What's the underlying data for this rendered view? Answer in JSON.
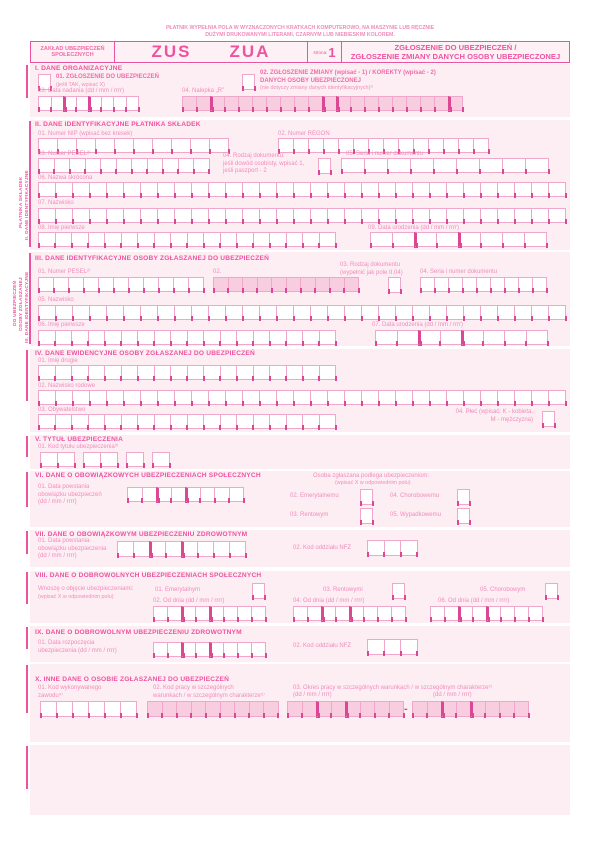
{
  "instructions": {
    "line1": "PŁATNIK WYPEŁNIA POLA W WYZNACZONYCH KRATKACH KOMPUTEROWO, NA MASZYNIE LUB RĘCZNIE",
    "line2": "DUŻYMI DRUKOWANYMI LITERAMI, CZARNYM LUB NIEBIESKIM KOLOREM."
  },
  "header": {
    "org1": "ZAKŁAD UBEZPIECZEŃ",
    "org2": "SPOŁECZNYCH",
    "code1": "ZUS",
    "code2": "ZUA",
    "page_label": "strona:",
    "page_number": "1",
    "title1": "ZGŁOSZENIE DO UBEZPIECZEŃ /",
    "title2": "ZGŁOSZENIE ZMIANY DANYCH OSOBY UBEZPIECZONEJ"
  },
  "side": {
    "s2_line1": "II. DANE IDENTYFIKACYJNE",
    "s2_line2": "PŁATNIKA SKŁADEK",
    "s3_line1": "III. DANE IDENTYFIKACYJNE",
    "s3_line2": "OSOBY ZGŁASZANEJ",
    "s3_line3": "DO UBEZPIECZEŃ"
  },
  "s1": {
    "title": "I. DANE ORGANIZACYJNE",
    "f01_label": "01. ZGŁOSZENIE DO UBEZPIECZEŃ",
    "f01_note": "(jeśli TAK, wpisać X)",
    "f01_box": "1",
    "f02_label": "02. ZGŁOSZENIE ZMIANY (wpisać - 1) / KOREKTY (wpisać - 2)",
    "f02_label2": "DANYCH OSOBY UBEZPIECZONEJ",
    "f02_note": "(nie dotyczy zmiany danych identyfikacyjnych)¹⁾",
    "f02_box": "1",
    "f03_label": "03. Data nadania (dd / mm / rrrr)",
    "f03_boxes": "2|2|4",
    "f04_label": "04. Nalepka „R”",
    "f04_boxes": "2|8|1|8|1"
  },
  "s2": {
    "title": "II. DANE IDENTYFIKACYJNE PŁATNIKA SKŁADEK",
    "f01_label": "01. Numer NIP (wpisać bez kresek)",
    "f01_boxes": "10",
    "f02_label": "02. Numer REGON",
    "f02_boxes": "14",
    "f03_label": "03. Numer PESEL²⁾",
    "f03_boxes": "11",
    "f04_label1": "04. Rodzaj dokumentu:",
    "f04_label2": "jeśli dowód osobisty, wpisać 1,",
    "f04_label3": "jeśli paszport - 2",
    "f04_box": "1",
    "f05_label": "05. Seria i numer dokumentu",
    "f05_boxes": "9",
    "f06_label": "06. Nazwa skrócona",
    "f06_boxes": "31",
    "f07_label": "07. Nazwisko",
    "f07_boxes": "31",
    "f08_label": "08. Imię pierwsze",
    "f08_boxes": "18",
    "f09_label": "09. Data urodzenia (dd / mm / rrrr)",
    "f09_boxes": "2|2|4"
  },
  "s3": {
    "title": "III. DANE IDENTYFIKACYJNE OSOBY ZGŁASZANEJ DO UBEZPIECZEŃ",
    "f01_label": "01. Numer PESEL²⁾",
    "f01_boxes": "11",
    "f02_label": "02.",
    "f02_boxes": "10",
    "f03_label1": "03. Rodzaj dokumentu",
    "f03_label2": "(wypełnić jak pole II.04)",
    "f03_box": "1",
    "f04_label": "04. Seria i numer dokumentu",
    "f04_boxes": "9",
    "f05_label": "05. Nazwisko",
    "f05_boxes": "31",
    "f06_label": "06. Imię pierwsze",
    "f06_boxes": "18",
    "f07_label": "07. Data urodzenia (dd / mm / rrrr)",
    "f07_boxes": "2|2|4"
  },
  "s4": {
    "title": "IV. DANE EWIDENCYJNE OSOBY ZGŁASZANEJ DO UBEZPIECZEŃ",
    "f01_label": "01. Imię drugie",
    "f01_boxes": "18",
    "f02_label": "02. Nazwisko rodowe",
    "f02_boxes": "31",
    "f03_label": "03. Obywatelstwo",
    "f03_boxes": "18",
    "f04_label1": "04. Płeć (wpisać: K - kobieta,",
    "f04_label2": "M - mężczyzna)",
    "f04_box": "1"
  },
  "s5": {
    "title": "V. TYTUŁ UBEZPIECZENIA",
    "f01_label": "01. Kod tytułu ubezpieczenia³⁾",
    "f01_boxes": "2,2,1,1"
  },
  "s6": {
    "title": "VI. DANE O OBOWIĄZKOWYCH UBEZPIECZENIACH SPOŁECZNYCH",
    "f01_label1": "01. Data powstania",
    "f01_label2": "obowiązku ubezpieczeń",
    "f01_label3": "(dd / mm / rrrr)",
    "f01_boxes": "2|2|4",
    "right_head": "Osoba zgłaszana podlega ubezpieczeniom:",
    "right_note": "(wpisać X w odpowiednim polu)",
    "f02_label": "02. Emerytalnemu",
    "f02_box": "1",
    "f03_label": "03. Rentowym",
    "f03_box": "1",
    "f04_label": "04. Chorobowemu",
    "f04_box": "1",
    "f05_label": "05. Wypadkowemu",
    "f05_box": "1"
  },
  "s7": {
    "title": "VII. DANE O OBOWIĄZKOWYM UBEZPIECZENIU ZDROWOTNYM",
    "f01_label1": "01. Data powstania",
    "f01_label2": "obowiązku ubezpieczenia",
    "f01_label3": "(dd / mm / rrrr)",
    "f01_boxes": "2|2|4",
    "f02_label": "02. Kod oddziału NFZ",
    "f02_boxes": "3"
  },
  "s8": {
    "title": "VIII. DANE O DOBROWOLNYCH UBEZPIECZENIACH SPOŁECZNYCH",
    "intro1": "Wnoszę o objęcie ubezpieczeniami:",
    "intro2": "(wpisać X w odpowiednim polu)",
    "f01_label": "01. Emerytalnym",
    "f01_box": "1",
    "f02_label": "02. Od dnia (dd / mm / rrrr)",
    "f02_boxes": "2|2|4",
    "f03_label": "03. Rentowymi",
    "f03_box": "1",
    "f04_label": "04. Od dnia (dd / mm / rrrr)",
    "f04_boxes": "2|2|4",
    "f05_label": "05. Chorobowym",
    "f05_box": "1",
    "f06_label": "06. Od dnia (dd / mm / rrrr)",
    "f06_boxes": "2|2|4"
  },
  "s9": {
    "title": "IX. DANE O DOBROWOLNYM UBEZPIECZENIU ZDROWOTNYM",
    "f01_label1": "01. Data rozpoczęcia",
    "f01_label2": "ubezpieczenia (dd / mm / rrrr)",
    "f01_boxes": "2|2|4",
    "f02_label": "02. Kod oddziału NFZ",
    "f02_boxes": "3"
  },
  "s10": {
    "title": "X. INNE DANE O OSOBIE ZGŁASZANEJ DO UBEZPIECZEŃ",
    "f01_label1": "01. Kod wykonywanego",
    "f01_label2": "zawodu⁴⁾",
    "f01_boxes": "6",
    "f02_label1": "02. Kod pracy w szczególnych",
    "f02_label2": "warunkach /  w szczególnym charakterze⁵⁾",
    "f02_boxes": "9",
    "f03_label1": "03. Okres pracy w szczególnych warunkach / w szczególnym charakterze⁵⁾",
    "f03_date1": "(dd / mm / rrrr)",
    "f03_date2": "(dd / mm / rrrr)",
    "f03_dash": "-",
    "f03_boxes_a": "2|2|4",
    "f03_boxes_b": "2|2|4"
  },
  "colors": {
    "accent": "#ee539f",
    "label": "#f18cba",
    "panel_bg": "#fdeef4",
    "box_border": "#f0a8ca",
    "tick": "#dd4694",
    "shaded_box": "#f8cde0"
  }
}
